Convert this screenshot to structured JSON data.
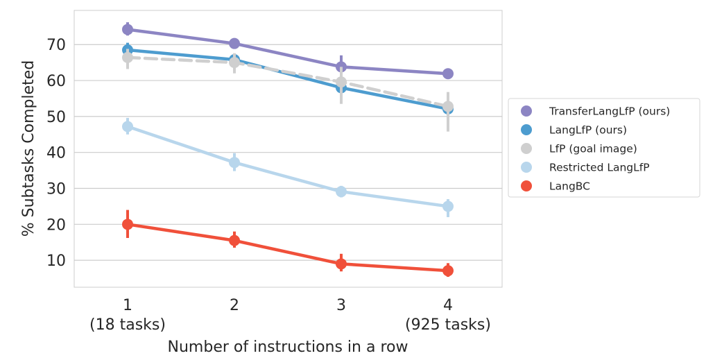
{
  "chart_data": {
    "type": "line",
    "xlabel": "Number of instructions in a row",
    "ylabel": "% Subtasks Completed",
    "categories": [
      "1",
      "2",
      "3",
      "4"
    ],
    "category_sublabels": [
      "(18 tasks)",
      "",
      "",
      "(925 tasks)"
    ],
    "yticks": [
      10,
      20,
      30,
      40,
      50,
      60,
      70
    ],
    "ylim": [
      2.5,
      79.5
    ],
    "grid": true,
    "legend_position": "right",
    "series": [
      {
        "name": "TransferLangLfP (ours)",
        "values": [
          74.2,
          70.3,
          63.8,
          61.9
        ],
        "err_low": [
          72.5,
          69.3,
          60.8,
          60.5
        ],
        "err_high": [
          76.2,
          71.4,
          67.0,
          63.2
        ],
        "color": "#8c85c3",
        "dashed": false
      },
      {
        "name": "LangLfP (ours)",
        "values": [
          68.5,
          65.8,
          58.0,
          52.1
        ],
        "err_low": [
          67.0,
          64.5,
          56.0,
          50.2
        ],
        "err_high": [
          70.5,
          67.5,
          60.5,
          54.5
        ],
        "color": "#4d9ccf",
        "dashed": false
      },
      {
        "name": "LfP (goal image)",
        "values": [
          66.4,
          65.0,
          59.6,
          52.8
        ],
        "err_low": [
          63.2,
          62.0,
          53.5,
          45.8
        ],
        "err_high": [
          68.8,
          67.6,
          63.8,
          56.8
        ],
        "color": "#cfcfcf",
        "dashed": true
      },
      {
        "name": "Restricted LangLfP",
        "values": [
          47.2,
          37.2,
          29.1,
          25.0
        ],
        "err_low": [
          45.0,
          34.8,
          27.5,
          22.0
        ],
        "err_high": [
          49.6,
          39.8,
          30.7,
          27.0
        ],
        "color": "#b8d6ec",
        "dashed": false
      },
      {
        "name": "LangBC",
        "values": [
          20.0,
          15.5,
          9.0,
          7.1
        ],
        "err_low": [
          16.2,
          13.5,
          6.9,
          5.4
        ],
        "err_high": [
          24.0,
          18.0,
          11.8,
          9.2
        ],
        "color": "#f0503a",
        "dashed": false
      }
    ]
  }
}
